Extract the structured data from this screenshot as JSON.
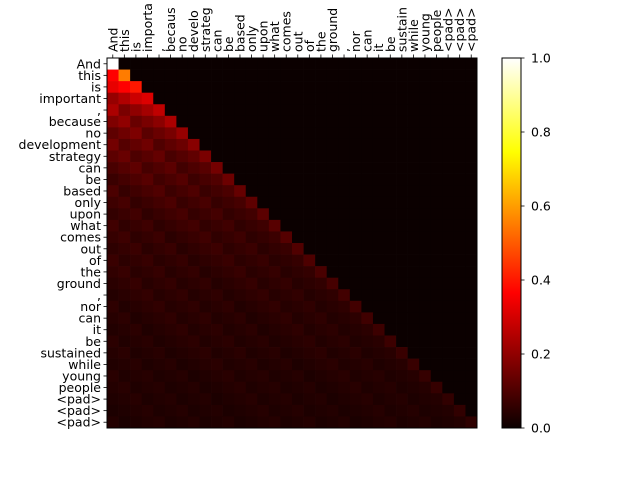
{
  "chart_data": {
    "type": "heatmap",
    "title": "",
    "xlabel": "",
    "ylabel": "",
    "x_tokens": [
      "And",
      "this",
      "is",
      "important",
      ",",
      "because",
      "no",
      "development",
      "strategy",
      "can",
      "be",
      "based",
      "only",
      "upon",
      "what",
      "comes",
      "out",
      "of",
      "the",
      "ground",
      ",",
      "nor",
      "can",
      "it",
      "be",
      "sustained",
      "while",
      "young",
      "people",
      "<pad>",
      "<pad>",
      "<pad>"
    ],
    "x_tick_labels": [
      "And",
      "this",
      "is",
      "importa",
      ",",
      "becaus",
      "no",
      "develo",
      "strateg",
      "can",
      "be",
      "based",
      "only",
      "upon",
      "what",
      "comes",
      "out",
      "of",
      "the",
      "ground",
      ",",
      "nor",
      "can",
      "it",
      "be",
      "sustain",
      "while",
      "young",
      "people",
      "<pad>",
      "<pad>",
      "<pad>"
    ],
    "y_tick_labels": [
      "And",
      "this",
      "is",
      "important",
      ",",
      "because",
      "no",
      "development",
      "strategy",
      "can",
      "be",
      "based",
      "only",
      "upon",
      "what",
      "comes",
      "out",
      "of",
      "the",
      "ground",
      ",",
      "nor",
      "can",
      "it",
      "be",
      "sustained",
      "while",
      "young",
      "people",
      "<pad>",
      "<pad>",
      "<pad>"
    ],
    "mask": "lower-triangular (row i attends to columns 0..i); entries above the diagonal are 0",
    "diagonal_values": [
      1.0,
      0.55,
      0.4,
      0.3,
      0.26,
      0.23,
      0.2,
      0.18,
      0.16,
      0.15,
      0.14,
      0.13,
      0.12,
      0.115,
      0.11,
      0.105,
      0.1,
      0.095,
      0.09,
      0.085,
      0.08,
      0.08,
      0.075,
      0.07,
      0.07,
      0.065,
      0.065,
      0.06,
      0.06,
      0.055,
      0.055,
      0.05
    ],
    "off_diagonal_typical_value": "about 1/(row index + 1)",
    "colormap": "hot",
    "colorbar": {
      "min": 0.0,
      "max": 1.0,
      "ticks": [
        "0.0",
        "0.2",
        "0.4",
        "0.6",
        "0.8",
        "1.0"
      ]
    },
    "grid": false,
    "legend": "none"
  }
}
